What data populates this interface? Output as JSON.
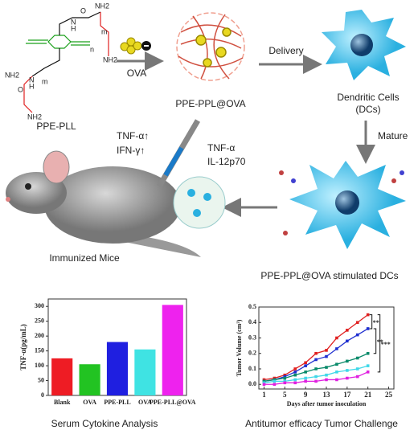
{
  "diagram": {
    "structure_labels": [
      "NH2",
      "O",
      "N",
      "H",
      "NH2",
      "NH2",
      "N",
      "H",
      "O",
      "NH2",
      "m",
      "n",
      "m"
    ],
    "polymer_label": "PPE-PLL",
    "ova_label": "OVA",
    "nanoparticle_label": "PPE-PPL@OVA",
    "delivery_label": "Delivery",
    "dc_label": [
      "Dendritic Cells",
      "(DCs)"
    ],
    "mature_label": "Mature",
    "dc_cytokines": [
      "TNF-α",
      "IL-12p70"
    ],
    "mouse_cytokines": [
      "TNF-α↑",
      "IFN-γ↑"
    ],
    "mouse_label": "Immunized Mice",
    "stimulated_label": "PPE-PPL@OVA stimulated DCs",
    "captions": [
      "Serum Cytokine Analysis",
      "Antitumor efficacy Tumor Challenge"
    ]
  },
  "chart_data": [
    {
      "type": "bar",
      "ylabel": "TNF-α(pg/mL)",
      "categories": [
        "Blank",
        "OVA",
        "PPE-PLL",
        "OVA",
        "PPE-PLL@OVA"
      ],
      "values": [
        125,
        105,
        180,
        155,
        305
      ],
      "colors": [
        "#ee1c24",
        "#22c322",
        "#1f1fe0",
        "#3fe3e3",
        "#ee22ee"
      ],
      "ylim": [
        0,
        325
      ],
      "yticks": [
        0,
        50,
        100,
        150,
        200,
        250,
        300
      ]
    },
    {
      "type": "line",
      "ylabel": "Tumor Volume (cm³)",
      "xlabel": "Days after tumor inoculation",
      "x": [
        1,
        3,
        5,
        7,
        9,
        11,
        13,
        15,
        17,
        19,
        21
      ],
      "series": [
        {
          "color": "#e02020",
          "values": [
            0.03,
            0.04,
            0.06,
            0.1,
            0.14,
            0.2,
            0.22,
            0.3,
            0.35,
            0.4,
            0.45
          ]
        },
        {
          "color": "#1f2fd0",
          "values": [
            0.02,
            0.03,
            0.05,
            0.08,
            0.12,
            0.16,
            0.18,
            0.23,
            0.28,
            0.32,
            0.36
          ]
        },
        {
          "color": "#0a8a6a",
          "values": [
            0.02,
            0.03,
            0.04,
            0.06,
            0.08,
            0.1,
            0.11,
            0.13,
            0.15,
            0.17,
            0.2
          ]
        },
        {
          "color": "#40d8e8",
          "values": [
            0.01,
            0.02,
            0.02,
            0.03,
            0.04,
            0.05,
            0.06,
            0.08,
            0.09,
            0.1,
            0.12
          ]
        },
        {
          "color": "#e020e0",
          "values": [
            0.0,
            0.0,
            0.01,
            0.01,
            0.02,
            0.02,
            0.03,
            0.03,
            0.04,
            0.05,
            0.08
          ]
        }
      ],
      "annotations": [
        "**",
        "**",
        "***"
      ],
      "xlim": [
        0,
        26
      ],
      "xticks": [
        1,
        5,
        9,
        13,
        17,
        21,
        25
      ],
      "ylim": [
        -0.03,
        0.5
      ],
      "yticks": [
        {
          "value": 0,
          "label": "0.0"
        },
        0.1,
        0.2,
        0.3,
        0.4,
        0.5
      ]
    }
  ]
}
